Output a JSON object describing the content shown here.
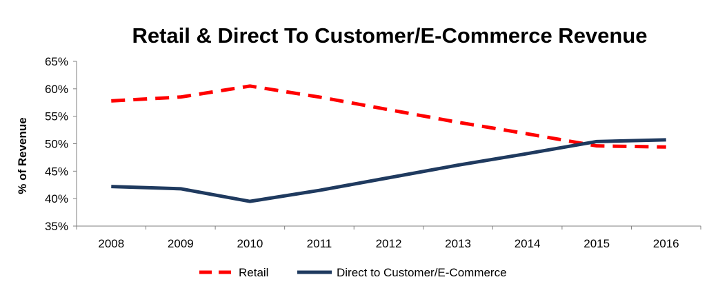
{
  "chart_data": {
    "type": "line",
    "title": "Retail & Direct To Customer/E-Commerce Revenue",
    "xlabel": "",
    "ylabel": "% of Revenue",
    "categories": [
      "2008",
      "2009",
      "2010",
      "2011",
      "2012",
      "2013",
      "2014",
      "2015",
      "2016"
    ],
    "ylim": [
      35,
      65
    ],
    "yticks": [
      35,
      40,
      45,
      50,
      55,
      60,
      65
    ],
    "ytick_labels": [
      "35%",
      "40%",
      "45%",
      "50%",
      "55%",
      "60%",
      "65%"
    ],
    "grid": false,
    "legend_position": "bottom",
    "series": [
      {
        "name": "Retail",
        "values": [
          57.8,
          58.5,
          60.5,
          58.5,
          56.2,
          53.9,
          51.8,
          49.6,
          49.4
        ],
        "color": "#ff0000",
        "style": "dashed"
      },
      {
        "name": "Direct to Customer/E-Commerce",
        "values": [
          42.2,
          41.8,
          39.5,
          41.5,
          43.8,
          46.1,
          48.2,
          50.4,
          50.7
        ],
        "color": "#1f3a5f",
        "style": "solid"
      }
    ]
  }
}
